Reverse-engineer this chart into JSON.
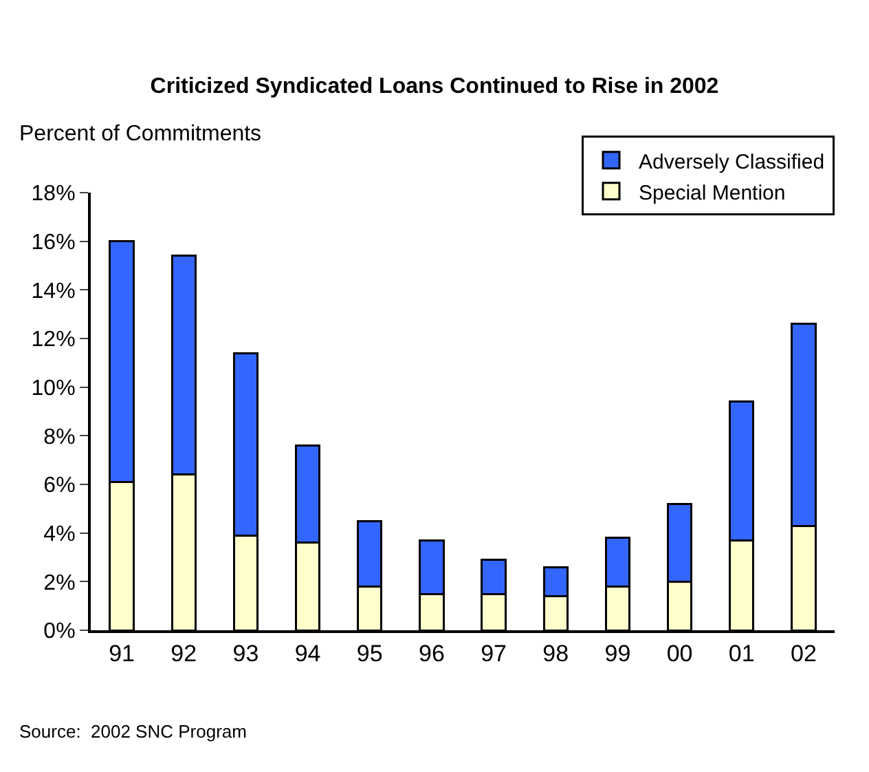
{
  "chart_data": {
    "type": "bar",
    "title": "Criticized Syndicated Loans Continued to Rise in 2002",
    "ylabel": "Percent of Commitments",
    "categories": [
      "91",
      "92",
      "93",
      "94",
      "95",
      "96",
      "97",
      "98",
      "99",
      "00",
      "01",
      "02"
    ],
    "series": [
      {
        "name": "Special Mention",
        "color": "#ffffcc",
        "values": [
          6.1,
          6.4,
          3.9,
          3.6,
          1.8,
          1.5,
          1.5,
          1.4,
          1.8,
          2.0,
          3.7,
          4.3
        ]
      },
      {
        "name": "Adversely Classified",
        "color": "#3366ff",
        "values": [
          9.9,
          9.0,
          7.5,
          4.0,
          2.7,
          2.2,
          1.4,
          1.2,
          2.0,
          3.2,
          5.7,
          8.3
        ]
      }
    ],
    "stacked": true,
    "ylim": [
      0,
      18
    ],
    "yticks": [
      {
        "value": 0,
        "label": "0%"
      },
      {
        "value": 2,
        "label": "2%"
      },
      {
        "value": 4,
        "label": "4%"
      },
      {
        "value": 6,
        "label": "6%"
      },
      {
        "value": 8,
        "label": "8%"
      },
      {
        "value": 10,
        "label": "10%"
      },
      {
        "value": 12,
        "label": "12%"
      },
      {
        "value": 14,
        "label": "14%"
      },
      {
        "value": 16,
        "label": "16%"
      },
      {
        "value": 18,
        "label": "18%"
      }
    ],
    "grid": false,
    "legend": "top right",
    "annotations": [
      "Source:  2002 SNC Program"
    ]
  }
}
